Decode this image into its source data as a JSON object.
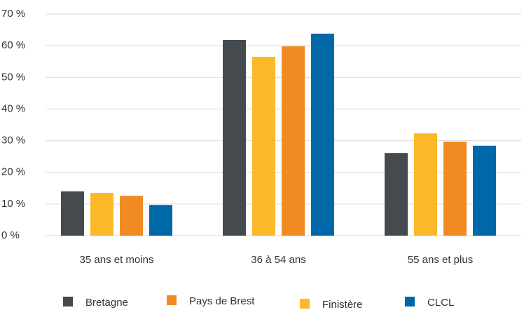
{
  "chart_data": {
    "type": "bar",
    "categories": [
      "35 ans et moins",
      "36 à 54 ans",
      "55 ans et plus"
    ],
    "series": [
      {
        "name": "Bretagne",
        "color": "#454a4f",
        "values": [
          14.0,
          61.8,
          26.1
        ]
      },
      {
        "name": "Finistère",
        "color": "#fbb829",
        "values": [
          13.5,
          56.5,
          32.3
        ]
      },
      {
        "name": "Pays de Brest",
        "color": "#f28a24",
        "values": [
          12.6,
          59.8,
          29.7
        ]
      },
      {
        "name": "CLCL",
        "color": "#0067a9",
        "values": [
          9.7,
          63.8,
          28.4
        ]
      }
    ],
    "ylim": [
      0,
      70
    ],
    "yticks": [
      {
        "value": 0,
        "label": "0 %"
      },
      {
        "value": 10,
        "label": "10 %"
      },
      {
        "value": 20,
        "label": "20 %"
      },
      {
        "value": 30,
        "label": "30 %"
      },
      {
        "value": 40,
        "label": "40 %"
      },
      {
        "value": 50,
        "label": "50 %"
      },
      {
        "value": 60,
        "label": "60 %"
      },
      {
        "value": 70,
        "label": "70 %"
      }
    ],
    "grid": true,
    "legend": "bottom"
  }
}
